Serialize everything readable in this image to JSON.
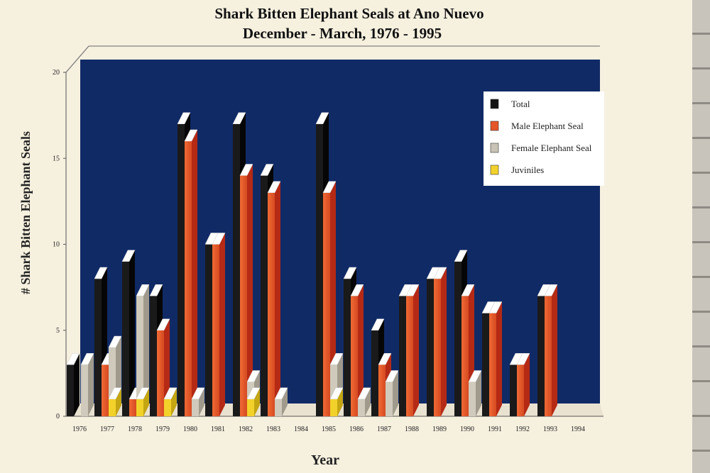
{
  "chart_data": {
    "type": "bar",
    "title": "Shark Bitten Elephant Seals at Ano Nuevo",
    "subtitle": "December - March, 1976 - 1995",
    "xlabel": "Year",
    "ylabel": "# Shark Bitten Elephant Seals",
    "ylim": [
      0,
      20
    ],
    "yticks": [
      "0",
      "5",
      "10",
      "15",
      "20"
    ],
    "grid": false,
    "legend_position": "top-right",
    "categories": [
      "1976",
      "1977",
      "1978",
      "1979",
      "1980",
      "1981",
      "1982",
      "1983",
      "1984",
      "1985",
      "1986",
      "1987",
      "1988",
      "1989",
      "1990",
      "1991",
      "1992",
      "1993",
      "1994"
    ],
    "series": [
      {
        "name": "Total",
        "color": "#141414",
        "values": [
          3,
          8,
          9,
          7,
          17,
          10,
          17,
          14,
          0,
          17,
          8,
          5,
          7,
          8,
          9,
          6,
          3,
          7,
          0
        ]
      },
      {
        "name": "Male Elephant Seal",
        "color": "#e5552a",
        "values": [
          0,
          3,
          1,
          5,
          16,
          10,
          14,
          13,
          0,
          13,
          7,
          3,
          7,
          8,
          7,
          6,
          3,
          7,
          0
        ]
      },
      {
        "name": "Female Elephant Seal",
        "color": "#c8c3b4",
        "values": [
          3,
          4,
          7,
          1,
          1,
          0,
          2,
          1,
          0,
          3,
          1,
          2,
          0,
          0,
          2,
          0,
          0,
          0,
          0
        ]
      },
      {
        "name": "Juviniles",
        "color": "#f2d22a",
        "values": [
          0,
          1,
          1,
          1,
          0,
          0,
          1,
          0,
          0,
          1,
          0,
          0,
          0,
          0,
          0,
          0,
          0,
          0,
          0
        ]
      }
    ]
  }
}
